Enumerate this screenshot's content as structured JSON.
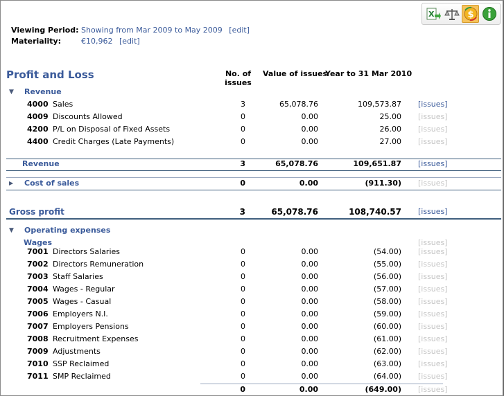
{
  "toolbar": {
    "buttons": [
      {
        "icon": "excel-export-icon"
      },
      {
        "icon": "scales-icon"
      },
      {
        "icon": "currency-refresh-icon",
        "active": true
      },
      {
        "icon": "info-icon"
      }
    ]
  },
  "header": {
    "viewing_period_label": "Viewing Period:",
    "viewing_period_value": "Showing from Mar 2009 to May 2009",
    "viewing_period_edit": "[edit]",
    "materiality_label": "Materiality:",
    "materiality_value": "€10,962",
    "materiality_edit": "[edit]"
  },
  "report": {
    "title": "Profit and Loss",
    "col_issues": "No. of issues",
    "col_value": "Value of issues",
    "col_ytd": "Year to 31 Mar 2010"
  },
  "revenue": {
    "label": "Revenue",
    "rows": [
      {
        "code": "4000",
        "name": "Sales",
        "issues": "3",
        "value": "65,078.76",
        "ytd": "109,573.87",
        "link": "[issues]",
        "link_enabled": true
      },
      {
        "code": "4009",
        "name": "Discounts Allowed",
        "issues": "0",
        "value": "0.00",
        "ytd": "25.00",
        "link": "[issues]",
        "link_enabled": false
      },
      {
        "code": "4200",
        "name": "P/L on Disposal of Fixed Assets",
        "issues": "0",
        "value": "0.00",
        "ytd": "26.00",
        "link": "[issues]",
        "link_enabled": false
      },
      {
        "code": "4400",
        "name": "Credit Charges (Late Payments)",
        "issues": "0",
        "value": "0.00",
        "ytd": "27.00",
        "link": "[issues]",
        "link_enabled": false
      }
    ],
    "total": {
      "label": "Revenue",
      "issues": "3",
      "value": "65,078.76",
      "ytd": "109,651.87",
      "link": "[issues]"
    }
  },
  "cost_of_sales": {
    "label": "Cost of sales",
    "issues": "0",
    "value": "0.00",
    "ytd": "(911.30)",
    "link": "[issues]"
  },
  "gross_profit": {
    "label": "Gross profit",
    "issues": "3",
    "value": "65,078.76",
    "ytd": "108,740.57",
    "link": "[issues]"
  },
  "operating_expenses": {
    "label": "Operating expenses",
    "wages": {
      "label": "Wages",
      "link": "[issues]",
      "rows": [
        {
          "code": "7001",
          "name": "Directors Salaries",
          "issues": "0",
          "value": "0.00",
          "ytd": "(54.00)",
          "link": "[issues]"
        },
        {
          "code": "7002",
          "name": "Directors Remuneration",
          "issues": "0",
          "value": "0.00",
          "ytd": "(55.00)",
          "link": "[issues]"
        },
        {
          "code": "7003",
          "name": "Staff Salaries",
          "issues": "0",
          "value": "0.00",
          "ytd": "(56.00)",
          "link": "[issues]"
        },
        {
          "code": "7004",
          "name": "Wages - Regular",
          "issues": "0",
          "value": "0.00",
          "ytd": "(57.00)",
          "link": "[issues]"
        },
        {
          "code": "7005",
          "name": "Wages - Casual",
          "issues": "0",
          "value": "0.00",
          "ytd": "(58.00)",
          "link": "[issues]"
        },
        {
          "code": "7006",
          "name": "Employers N.I.",
          "issues": "0",
          "value": "0.00",
          "ytd": "(59.00)",
          "link": "[issues]"
        },
        {
          "code": "7007",
          "name": "Employers Pensions",
          "issues": "0",
          "value": "0.00",
          "ytd": "(60.00)",
          "link": "[issues]"
        },
        {
          "code": "7008",
          "name": "Recruitment Expenses",
          "issues": "0",
          "value": "0.00",
          "ytd": "(61.00)",
          "link": "[issues]"
        },
        {
          "code": "7009",
          "name": "Adjustments",
          "issues": "0",
          "value": "0.00",
          "ytd": "(62.00)",
          "link": "[issues]"
        },
        {
          "code": "7010",
          "name": "SSP Reclaimed",
          "issues": "0",
          "value": "0.00",
          "ytd": "(63.00)",
          "link": "[issues]"
        },
        {
          "code": "7011",
          "name": "SMP Reclaimed",
          "issues": "0",
          "value": "0.00",
          "ytd": "(64.00)",
          "link": "[issues]"
        }
      ],
      "total": {
        "issues": "0",
        "value": "0.00",
        "ytd": "(649.00)",
        "link": "[issues]"
      }
    }
  }
}
